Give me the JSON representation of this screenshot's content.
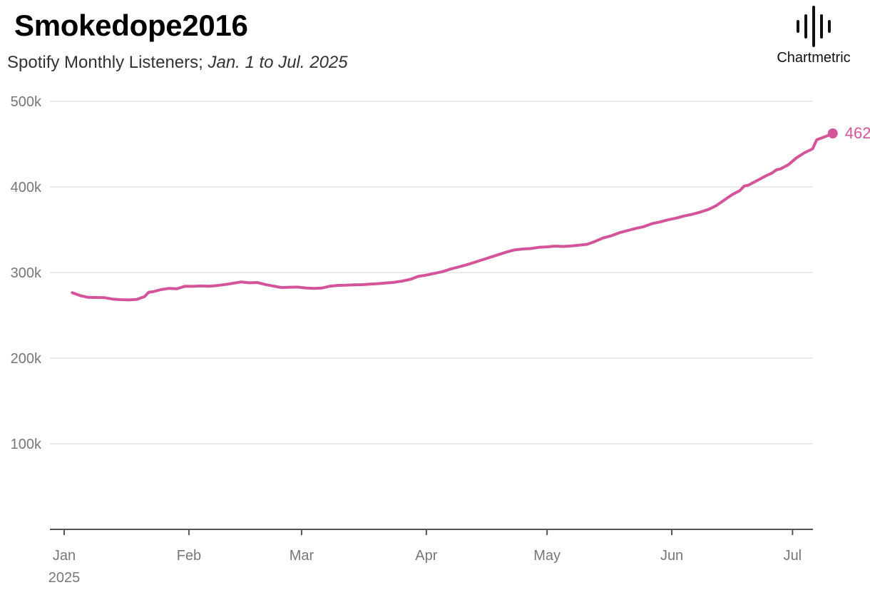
{
  "header": {
    "title": "Smokedope2016",
    "subtitle_main": "Spotify Monthly Listeners; ",
    "subtitle_range": "Jan. 1 to Jul. 2025"
  },
  "brand": {
    "name": "Chartmetric",
    "icon": "chartmetric-logo-icon"
  },
  "colors": {
    "line": "#d4549a",
    "grid": "#e3e3e3",
    "axis": "#555555",
    "tick_text": "#777777"
  },
  "chart_data": {
    "type": "line",
    "title": "Smokedope2016",
    "subtitle": "Spotify Monthly Listeners; Jan. 1 to Jul. 2025",
    "xlabel": "",
    "ylabel": "",
    "ylim": [
      0,
      500000
    ],
    "xlim": [
      "2025-01-01",
      "2025-07-02"
    ],
    "y_ticks": [
      {
        "value": 100000,
        "label": "100k"
      },
      {
        "value": 200000,
        "label": "200k"
      },
      {
        "value": 300000,
        "label": "300k"
      },
      {
        "value": 400000,
        "label": "400k"
      },
      {
        "value": 500000,
        "label": "500k"
      }
    ],
    "x_ticks": [
      {
        "date": "2025-01-01",
        "label": "Jan",
        "sublabel": "2025"
      },
      {
        "date": "2025-02-01",
        "label": "Feb"
      },
      {
        "date": "2025-03-01",
        "label": "Mar"
      },
      {
        "date": "2025-04-01",
        "label": "Apr"
      },
      {
        "date": "2025-05-01",
        "label": "May"
      },
      {
        "date": "2025-06-01",
        "label": "Jun"
      },
      {
        "date": "2025-07-01",
        "label": "Jul"
      }
    ],
    "grid": true,
    "end_label": "462.5k",
    "series": [
      {
        "color": "#d4549a",
        "points": [
          [
            "2025-01-03",
            276500
          ],
          [
            "2025-01-05",
            273000
          ],
          [
            "2025-01-07",
            271000
          ],
          [
            "2025-01-09",
            270800
          ],
          [
            "2025-01-11",
            270700
          ],
          [
            "2025-01-13",
            269000
          ],
          [
            "2025-01-15",
            268300
          ],
          [
            "2025-01-17",
            268000
          ],
          [
            "2025-01-19",
            268500
          ],
          [
            "2025-01-21",
            272000
          ],
          [
            "2025-01-22",
            277000
          ],
          [
            "2025-01-23",
            277500
          ],
          [
            "2025-01-25",
            280000
          ],
          [
            "2025-01-27",
            281500
          ],
          [
            "2025-01-29",
            281000
          ],
          [
            "2025-01-31",
            284000
          ],
          [
            "2025-02-02",
            283800
          ],
          [
            "2025-02-04",
            284300
          ],
          [
            "2025-02-06",
            284000
          ],
          [
            "2025-02-08",
            284800
          ],
          [
            "2025-02-10",
            286000
          ],
          [
            "2025-02-12",
            287500
          ],
          [
            "2025-02-14",
            289000
          ],
          [
            "2025-02-16",
            288000
          ],
          [
            "2025-02-18",
            288300
          ],
          [
            "2025-02-20",
            286000
          ],
          [
            "2025-02-22",
            284200
          ],
          [
            "2025-02-24",
            282500
          ],
          [
            "2025-02-26",
            282800
          ],
          [
            "2025-02-28",
            283000
          ],
          [
            "2025-03-02",
            282000
          ],
          [
            "2025-03-04",
            281500
          ],
          [
            "2025-03-06",
            281800
          ],
          [
            "2025-03-08",
            284000
          ],
          [
            "2025-03-10",
            285000
          ],
          [
            "2025-03-12",
            285200
          ],
          [
            "2025-03-14",
            285700
          ],
          [
            "2025-03-16",
            285800
          ],
          [
            "2025-03-18",
            286500
          ],
          [
            "2025-03-20",
            287000
          ],
          [
            "2025-03-22",
            287800
          ],
          [
            "2025-03-24",
            288600
          ],
          [
            "2025-03-26",
            290000
          ],
          [
            "2025-03-28",
            292000
          ],
          [
            "2025-03-30",
            295500
          ],
          [
            "2025-04-01",
            297000
          ],
          [
            "2025-04-03",
            299000
          ],
          [
            "2025-04-05",
            301000
          ],
          [
            "2025-04-07",
            304000
          ],
          [
            "2025-04-09",
            306500
          ],
          [
            "2025-04-11",
            309000
          ],
          [
            "2025-04-13",
            312000
          ],
          [
            "2025-04-15",
            315000
          ],
          [
            "2025-04-17",
            318000
          ],
          [
            "2025-04-19",
            321000
          ],
          [
            "2025-04-21",
            324000
          ],
          [
            "2025-04-23",
            326500
          ],
          [
            "2025-04-25",
            327500
          ],
          [
            "2025-04-27",
            328000
          ],
          [
            "2025-04-29",
            329500
          ],
          [
            "2025-05-01",
            330000
          ],
          [
            "2025-05-03",
            330800
          ],
          [
            "2025-05-05",
            330400
          ],
          [
            "2025-05-07",
            331000
          ],
          [
            "2025-05-09",
            332000
          ],
          [
            "2025-05-11",
            333000
          ],
          [
            "2025-05-13",
            336500
          ],
          [
            "2025-05-15",
            340500
          ],
          [
            "2025-05-17",
            343000
          ],
          [
            "2025-05-19",
            346500
          ],
          [
            "2025-05-21",
            349000
          ],
          [
            "2025-05-23",
            351500
          ],
          [
            "2025-05-25",
            353500
          ],
          [
            "2025-05-27",
            357000
          ],
          [
            "2025-05-29",
            359000
          ],
          [
            "2025-05-31",
            361500
          ],
          [
            "2025-06-02",
            363500
          ],
          [
            "2025-06-04",
            366000
          ],
          [
            "2025-06-06",
            368000
          ],
          [
            "2025-06-08",
            370500
          ],
          [
            "2025-06-10",
            373500
          ],
          [
            "2025-06-12",
            378000
          ],
          [
            "2025-06-14",
            384500
          ],
          [
            "2025-06-16",
            391000
          ],
          [
            "2025-06-18",
            396000
          ],
          [
            "2025-06-19",
            401000
          ],
          [
            "2025-06-20",
            402000
          ],
          [
            "2025-06-22",
            407000
          ],
          [
            "2025-06-24",
            412000
          ],
          [
            "2025-06-26",
            416500
          ],
          [
            "2025-06-27",
            420000
          ],
          [
            "2025-06-28",
            421000
          ],
          [
            "2025-06-30",
            426000
          ],
          [
            "2025-07-02",
            434000
          ],
          [
            "2025-07-04",
            440000
          ],
          [
            "2025-07-06",
            444500
          ],
          [
            "2025-07-07",
            455000
          ],
          [
            "2025-07-09",
            458500
          ],
          [
            "2025-07-11",
            462500
          ]
        ]
      }
    ]
  }
}
